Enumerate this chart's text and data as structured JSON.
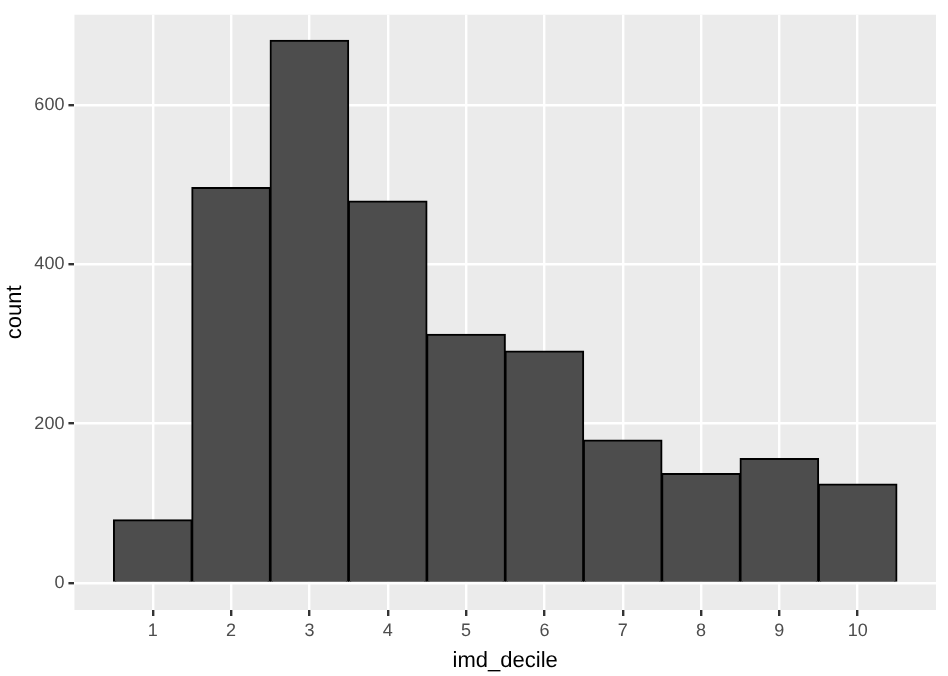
{
  "chart_data": {
    "type": "histogram",
    "xlabel": "imd_decile",
    "ylabel": "count",
    "bins": [
      0.5,
      1.5,
      2.5,
      3.5,
      4.5,
      5.5,
      6.5,
      7.5,
      8.5,
      9.5,
      10.5
    ],
    "values": [
      79,
      496,
      681,
      479,
      312,
      291,
      179,
      137,
      156,
      124
    ],
    "color": "#4d4d4d",
    "xlim": [
      0,
      11
    ],
    "xticks": [
      1,
      2,
      3,
      4,
      5,
      6,
      7,
      8,
      9,
      10
    ],
    "ylim": [
      -34,
      713
    ],
    "yticks": [
      0,
      200,
      400,
      600
    ],
    "grid": true,
    "legend": false
  }
}
